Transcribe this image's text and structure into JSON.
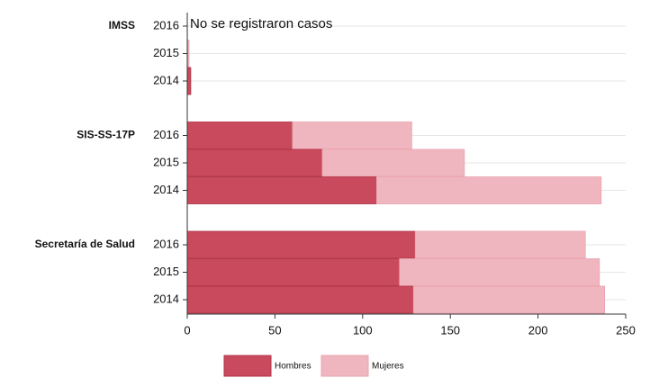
{
  "chart_data": {
    "type": "stacked-horizontal-bar",
    "groups": [
      {
        "name": "IMSS",
        "categories": [
          "2016",
          "2015",
          "2014"
        ]
      },
      {
        "name": "SIS-SS-17P",
        "categories": [
          "2016",
          "2015",
          "2014"
        ]
      },
      {
        "name": "Secretaría de Salud",
        "categories": [
          "2016",
          "2015",
          "2014"
        ]
      }
    ],
    "series": [
      {
        "name": "Hombres",
        "color": "#c94a5c",
        "values": [
          0,
          0,
          2,
          60,
          77,
          108,
          130,
          121,
          129
        ]
      },
      {
        "name": "Mujeres",
        "color": "#f0b6bf",
        "values": [
          0,
          1,
          0,
          68,
          81,
          128,
          97,
          114,
          109
        ]
      }
    ],
    "annotation": "No se  registraron casos",
    "xlim": [
      0,
      250
    ],
    "xticks": [
      0,
      50,
      100,
      150,
      200,
      250
    ],
    "grid": true
  }
}
